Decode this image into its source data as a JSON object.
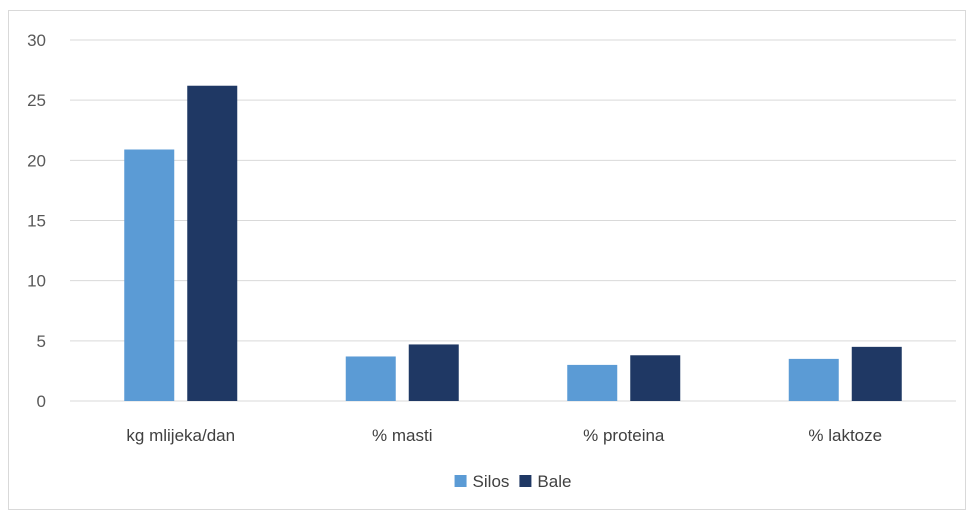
{
  "chart_data": {
    "type": "bar",
    "categories": [
      "kg mlijeka/dan",
      "% masti",
      "% proteina",
      "% laktoze"
    ],
    "series": [
      {
        "name": "Silos",
        "color": "#5b9bd5",
        "values": [
          20.9,
          3.7,
          3.0,
          3.5
        ]
      },
      {
        "name": "Bale",
        "color": "#1f3864",
        "values": [
          26.2,
          4.7,
          3.8,
          4.5
        ]
      }
    ],
    "y_ticks": [
      "0",
      "5",
      "10",
      "15",
      "20",
      "25",
      "30"
    ],
    "ylim": [
      0,
      30
    ],
    "grid": true,
    "legend_position": "bottom-center",
    "gridline_color": "#d9d9d9"
  }
}
